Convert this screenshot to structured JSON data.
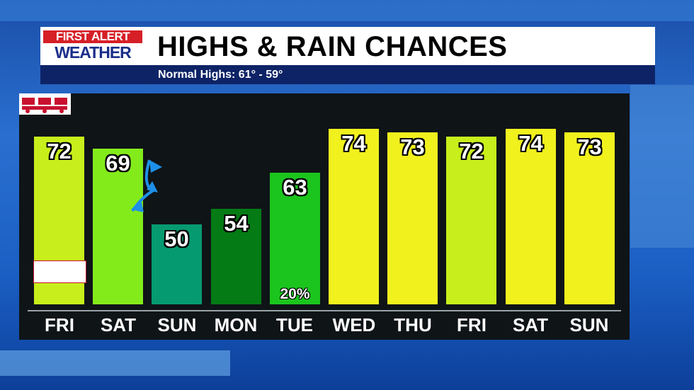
{
  "header": {
    "logo_line1": "FIRST ALERT",
    "logo_line2": "WEATHER",
    "title": "HIGHS & RAIN CHANCES",
    "subtitle": "Normal Highs: 61° - 59°"
  },
  "colors": {
    "header_bg": "#ffffff",
    "subbar_bg": "#0d2366",
    "logo_red": "#d61f26",
    "logo_blue": "#1a2f8a",
    "panel_bg": "#0f1417",
    "front_blue": "#1e90e8"
  },
  "badge": {
    "name": "toys-for-tots-logo",
    "color": "#c8102e"
  },
  "front_icon": "cold-front-icon",
  "chart_data": {
    "type": "bar",
    "title": "HIGHS & RAIN CHANCES",
    "xlabel": "",
    "ylabel": "",
    "ylim": [
      30,
      80
    ],
    "grid": false,
    "categories": [
      "FRI",
      "SAT",
      "SUN",
      "MON",
      "TUE",
      "WED",
      "THU",
      "FRI",
      "SAT",
      "SUN"
    ],
    "values": [
      72,
      69,
      50,
      54,
      63,
      74,
      73,
      72,
      74,
      73
    ],
    "value_labels": [
      "72",
      "69",
      "50",
      "54",
      "63",
      "74",
      "73",
      "72",
      "74",
      "73"
    ],
    "bar_colors": [
      "#c8ef1b",
      "#84eb1b",
      "#069a70",
      "#047b14",
      "#1bc51d",
      "#f1f11e",
      "#f1f11e",
      "#c8ef1b",
      "#f1f11e",
      "#f1f11e"
    ],
    "rain_chances": [
      "",
      "",
      "",
      "",
      "20%",
      "",
      "",
      "",
      "",
      ""
    ]
  }
}
